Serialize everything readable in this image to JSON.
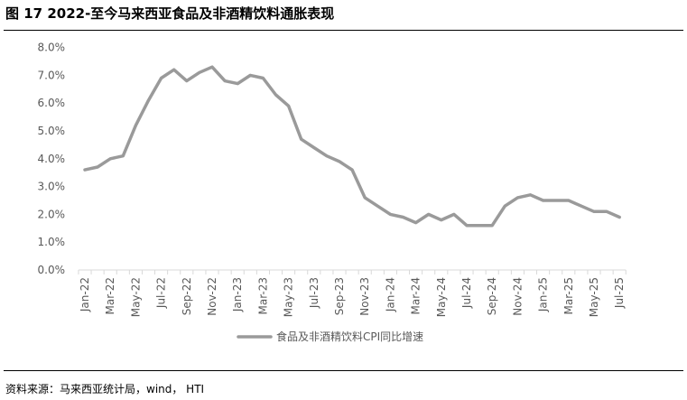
{
  "header": {
    "title": "图 17 2022-至今马来西亚食品及非酒精饮料通胀表现"
  },
  "footer": {
    "source": "资料来源：马来西亚统计局，wind， HTI"
  },
  "colors": {
    "line": "#9a9a9a",
    "axis": "#d9d9d9",
    "tick_text": "#595959"
  },
  "chart_data": {
    "type": "line",
    "title": "",
    "xlabel": "",
    "ylabel": "",
    "ylim": [
      0,
      8
    ],
    "y_ticks": [
      "0.0%",
      "1.0%",
      "2.0%",
      "3.0%",
      "4.0%",
      "5.0%",
      "6.0%",
      "7.0%",
      "8.0%"
    ],
    "x_tick_labels": [
      "Jan-22",
      "Mar-22",
      "May-22",
      "Jul-22",
      "Sep-22",
      "Nov-22",
      "Jan-23",
      "Mar-23",
      "May-23",
      "Jul-23",
      "Sep-23",
      "Nov-23",
      "Jan-24",
      "Mar-24",
      "May-24",
      "Jul-24",
      "Sep-24",
      "Nov-24",
      "Jan-25",
      "Mar-25",
      "May-25",
      "Jul-25"
    ],
    "grid": false,
    "legend_position": "bottom",
    "categories": [
      "Jan-22",
      "Feb-22",
      "Mar-22",
      "Apr-22",
      "May-22",
      "Jun-22",
      "Jul-22",
      "Aug-22",
      "Sep-22",
      "Oct-22",
      "Nov-22",
      "Dec-22",
      "Jan-23",
      "Feb-23",
      "Mar-23",
      "Apr-23",
      "May-23",
      "Jun-23",
      "Jul-23",
      "Aug-23",
      "Sep-23",
      "Oct-23",
      "Nov-23",
      "Dec-23",
      "Jan-24",
      "Feb-24",
      "Mar-24",
      "Apr-24",
      "May-24",
      "Jun-24",
      "Jul-24",
      "Aug-24",
      "Sep-24",
      "Oct-24",
      "Nov-24",
      "Dec-24",
      "Jan-25",
      "Feb-25",
      "Mar-25",
      "Apr-25",
      "May-25",
      "Jun-25",
      "Jul-25"
    ],
    "series": [
      {
        "name": "食品及非酒精饮料CPI同比增速",
        "values": [
          3.6,
          3.7,
          4.0,
          4.1,
          5.2,
          6.1,
          6.9,
          7.2,
          6.8,
          7.1,
          7.3,
          6.8,
          6.7,
          7.0,
          6.9,
          6.3,
          5.9,
          4.7,
          4.4,
          4.1,
          3.9,
          3.6,
          2.6,
          2.3,
          2.0,
          1.9,
          1.7,
          2.0,
          1.8,
          2.0,
          1.6,
          1.6,
          1.6,
          2.3,
          2.6,
          2.7,
          2.5,
          2.5,
          2.5,
          2.3,
          2.1,
          2.1,
          1.9
        ]
      }
    ]
  }
}
